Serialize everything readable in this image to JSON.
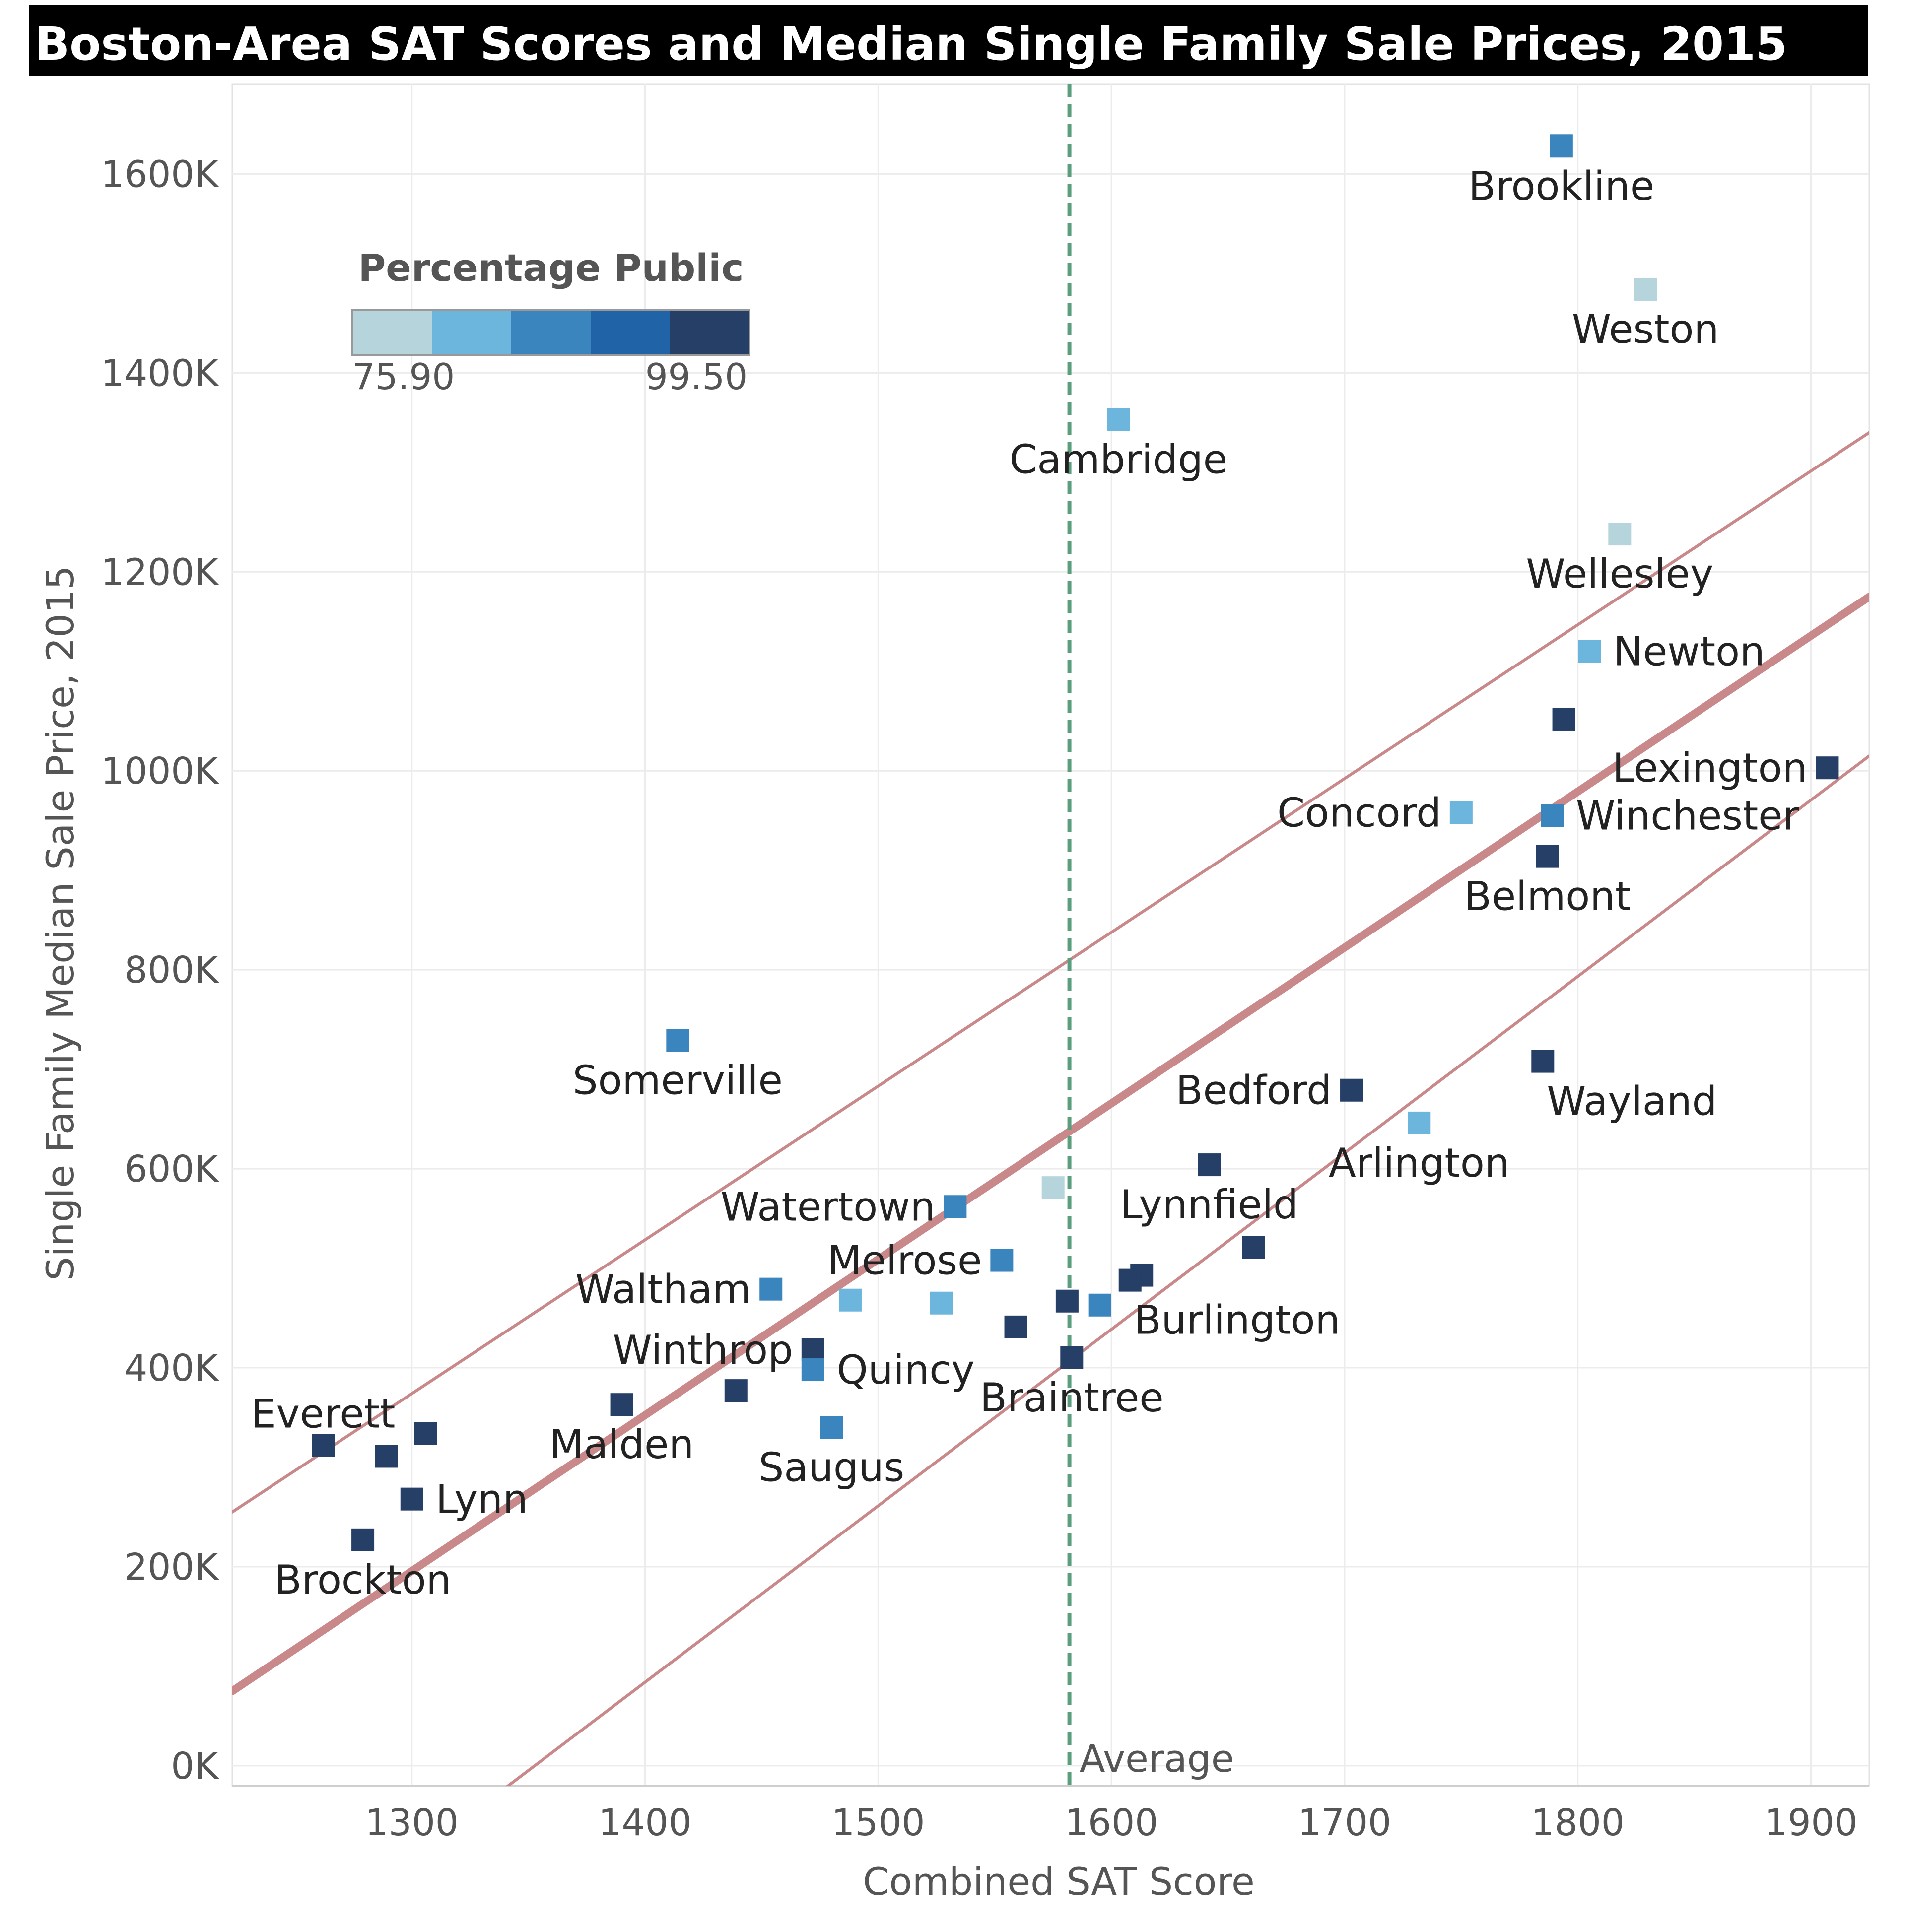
{
  "chart_data": {
    "type": "scatter",
    "title": "Boston-Area SAT Scores and Median Single Family Sale Prices, 2015",
    "xlabel": "Combined SAT Score",
    "ylabel": "Single Family Median Sale Price, 2015",
    "xlim": [
      1223,
      1925
    ],
    "ylim": [
      -20000,
      1690000
    ],
    "x_ticks": [
      1300,
      1400,
      1500,
      1600,
      1700,
      1800,
      1900
    ],
    "x_tick_labels": [
      "1300",
      "1400",
      "1500",
      "1600",
      "1700",
      "1800",
      "1900"
    ],
    "y_ticks": [
      0,
      200000,
      400000,
      600000,
      800000,
      1000000,
      1200000,
      1400000,
      1600000
    ],
    "y_tick_labels": [
      "0K",
      "200K",
      "400K",
      "600K",
      "800K",
      "1000K",
      "1200K",
      "1400K",
      "1600K"
    ],
    "grid": true,
    "legend": {
      "title": "Percentage Public",
      "min_label": "75.90",
      "max_label": "99.50",
      "min": 75.9,
      "max": 99.5,
      "colors": [
        "#b5d4dc",
        "#6cb6de",
        "#3a85bd",
        "#2063a7",
        "#253f67"
      ],
      "placement": "top-left"
    },
    "reference_line": {
      "x": 1582,
      "label": "Average",
      "color": "#5a9e7e"
    },
    "trend": {
      "color": "#c9898b",
      "center": {
        "x": [
          1223,
          1925
        ],
        "y": [
          75000,
          1175000
        ]
      },
      "upper": {
        "x": [
          1223,
          1925
        ],
        "y": [
          255000,
          1340000
        ]
      },
      "lower": {
        "x": [
          1223,
          1925
        ],
        "y": [
          -230000,
          1015000
        ]
      }
    },
    "points": [
      {
        "name": "Brookline",
        "x": 1793,
        "y": 1628000,
        "pct": 88,
        "label": "Brookline",
        "lpos": "below"
      },
      {
        "name": "Weston",
        "x": 1829,
        "y": 1484000,
        "pct": 77,
        "label": "Weston",
        "lpos": "below"
      },
      {
        "name": "Cambridge",
        "x": 1603,
        "y": 1353000,
        "pct": 82,
        "label": "Cambridge",
        "lpos": "below"
      },
      {
        "name": "Wellesley",
        "x": 1818,
        "y": 1238000,
        "pct": 77,
        "label": "Wellesley",
        "lpos": "below"
      },
      {
        "name": "Newton",
        "x": 1805,
        "y": 1120000,
        "pct": 82,
        "label": "Newton",
        "lpos": "right"
      },
      {
        "name": "unlabeled",
        "x": 1794,
        "y": 1052000,
        "pct": 99,
        "label": "",
        "lpos": "none"
      },
      {
        "name": "Lexington",
        "x": 1907,
        "y": 1003000,
        "pct": 95,
        "label": "Lexington",
        "lpos": "left"
      },
      {
        "name": "Concord",
        "x": 1750,
        "y": 958000,
        "pct": 82,
        "label": "Concord",
        "lpos": "left"
      },
      {
        "name": "Winchester",
        "x": 1789,
        "y": 955000,
        "pct": 89,
        "label": "Winchester",
        "lpos": "right"
      },
      {
        "name": "Belmont",
        "x": 1787,
        "y": 914000,
        "pct": 95,
        "label": "Belmont",
        "lpos": "below"
      },
      {
        "name": "Somerville",
        "x": 1414,
        "y": 729000,
        "pct": 88,
        "label": "Somerville",
        "lpos": "below"
      },
      {
        "name": "Wayland",
        "x": 1785,
        "y": 708000,
        "pct": 99,
        "label": "Wayland",
        "lpos": "belowright"
      },
      {
        "name": "Bedford",
        "x": 1703,
        "y": 679000,
        "pct": 95,
        "label": "Bedford",
        "lpos": "left"
      },
      {
        "name": "Arlington",
        "x": 1732,
        "y": 646000,
        "pct": 82,
        "label": "Arlington",
        "lpos": "below"
      },
      {
        "name": "Lynnfield",
        "x": 1642,
        "y": 604000,
        "pct": 95,
        "label": "Lynnfield",
        "lpos": "below"
      },
      {
        "name": "unlabeled",
        "x": 1575,
        "y": 581000,
        "pct": 77,
        "label": "",
        "lpos": "none"
      },
      {
        "name": "Watertown",
        "x": 1533,
        "y": 562000,
        "pct": 88,
        "label": "Watertown",
        "lpos": "left"
      },
      {
        "name": "unlabeled",
        "x": 1661,
        "y": 521000,
        "pct": 95,
        "label": "",
        "lpos": "none"
      },
      {
        "name": "Melrose",
        "x": 1553,
        "y": 508000,
        "pct": 88,
        "label": "Melrose",
        "lpos": "left"
      },
      {
        "name": "unlabeled",
        "x": 1613,
        "y": 493000,
        "pct": 95,
        "label": "",
        "lpos": "none"
      },
      {
        "name": "Burlington",
        "x": 1608,
        "y": 488000,
        "pct": 95,
        "label": "Burlington",
        "lpos": "belowright"
      },
      {
        "name": "Waltham",
        "x": 1454,
        "y": 479000,
        "pct": 88,
        "label": "Waltham",
        "lpos": "left"
      },
      {
        "name": "unlabeled",
        "x": 1488,
        "y": 468000,
        "pct": 82,
        "label": "",
        "lpos": "none"
      },
      {
        "name": "unlabeled",
        "x": 1581,
        "y": 467000,
        "pct": 95,
        "label": "",
        "lpos": "none"
      },
      {
        "name": "unlabeled",
        "x": 1527,
        "y": 465000,
        "pct": 82,
        "label": "",
        "lpos": "none"
      },
      {
        "name": "unlabeled",
        "x": 1595,
        "y": 463000,
        "pct": 88,
        "label": "",
        "lpos": "none"
      },
      {
        "name": "unlabeled",
        "x": 1559,
        "y": 441000,
        "pct": 95,
        "label": "",
        "lpos": "none"
      },
      {
        "name": "Winthrop",
        "x": 1472,
        "y": 418000,
        "pct": 95,
        "label": "Winthrop",
        "lpos": "left"
      },
      {
        "name": "Braintree",
        "x": 1583,
        "y": 410000,
        "pct": 95,
        "label": "Braintree",
        "lpos": "below"
      },
      {
        "name": "Quincy",
        "x": 1472,
        "y": 398000,
        "pct": 88,
        "label": "Quincy",
        "lpos": "right"
      },
      {
        "name": "unlabeled",
        "x": 1439,
        "y": 377000,
        "pct": 95,
        "label": "",
        "lpos": "none"
      },
      {
        "name": "Malden",
        "x": 1390,
        "y": 363000,
        "pct": 99,
        "label": "Malden",
        "lpos": "below"
      },
      {
        "name": "Saugus",
        "x": 1480,
        "y": 340000,
        "pct": 88,
        "label": "Saugus",
        "lpos": "below"
      },
      {
        "name": "unlabeled",
        "x": 1306,
        "y": 334000,
        "pct": 99,
        "label": "",
        "lpos": "none"
      },
      {
        "name": "Everett",
        "x": 1262,
        "y": 322000,
        "pct": 95,
        "label": "Everett",
        "lpos": "above"
      },
      {
        "name": "unlabeled",
        "x": 1289,
        "y": 311000,
        "pct": 99,
        "label": "",
        "lpos": "none"
      },
      {
        "name": "Lynn",
        "x": 1300,
        "y": 268000,
        "pct": 95,
        "label": "Lynn",
        "lpos": "right"
      },
      {
        "name": "Brockton",
        "x": 1279,
        "y": 227000,
        "pct": 99,
        "label": "Brockton",
        "lpos": "below"
      }
    ]
  }
}
